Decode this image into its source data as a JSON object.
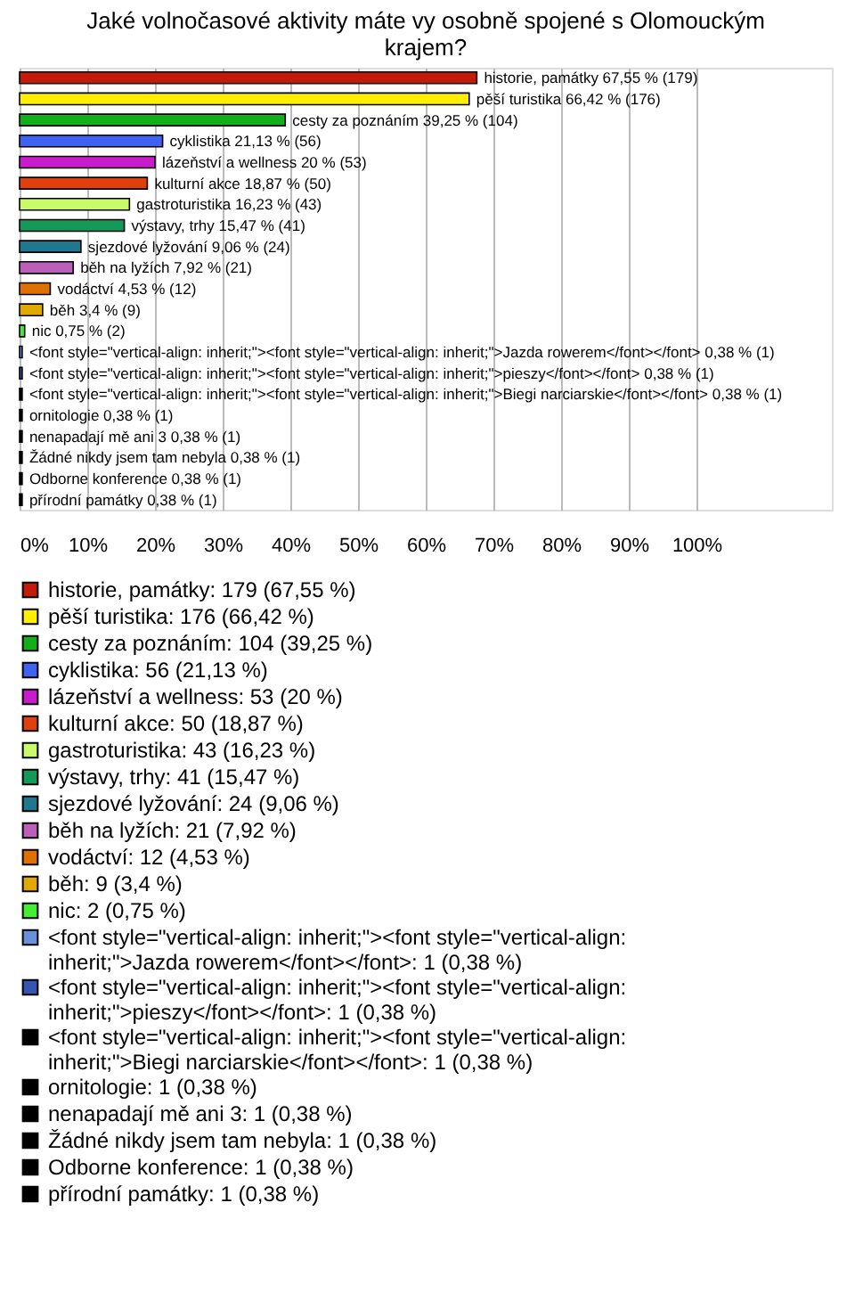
{
  "chart_data": {
    "type": "bar",
    "orientation": "horizontal",
    "stacked": true,
    "title": "Jaké volnočasové aktivity máte vy osobně spojené s Olomouckým krajem?",
    "categories": [
      "historie, památky",
      "pěší turistika",
      "cesty za poznáním",
      "cyklistika",
      "lázeňství a wellness",
      "kulturní akce",
      "gastroturistika",
      "výstavy, trhy",
      "sjezdové lyžování",
      "běh na lyžích",
      "vodáctví",
      "běh",
      "nic",
      "<font style=\"vertical-align: inherit;\"><font style=\"vertical-align: inherit;\">Jazda rowerem</font></font>",
      "<font style=\"vertical-align: inherit;\"><font style=\"vertical-align: inherit;\">pieszy</font></font>",
      "<font style=\"vertical-align: inherit;\"><font style=\"vertical-align: inherit;\">Biegi narciarskie</font></font>",
      "ornitologie",
      "nenapadají mě ani 3",
      "Žádné nikdy jsem tam nebyla",
      "Odborne konference",
      "přírodní památky"
    ],
    "series": [
      {
        "name": "historie, památky: 179 (67,55 %)",
        "color": "#c41a0a",
        "values": [
          67.55,
          null,
          null,
          null,
          null,
          null,
          null,
          null,
          null,
          null,
          null,
          null,
          null,
          null,
          null,
          null,
          null,
          null,
          null,
          null,
          null
        ]
      },
      {
        "name": "pěší turistika: 176 (66,42 %)",
        "color": "#ffee00",
        "values": [
          null,
          66.42,
          null,
          null,
          null,
          null,
          null,
          null,
          null,
          null,
          null,
          null,
          null,
          null,
          null,
          null,
          null,
          null,
          null,
          null,
          null
        ]
      },
      {
        "name": "cesty za poznáním: 104 (39,25 %)",
        "color": "#11b01a",
        "values": [
          null,
          null,
          39.25,
          null,
          null,
          null,
          null,
          null,
          null,
          null,
          null,
          null,
          null,
          null,
          null,
          null,
          null,
          null,
          null,
          null,
          null
        ]
      },
      {
        "name": "cyklistika: 56 (21,13 %)",
        "color": "#3f63f0",
        "values": [
          null,
          null,
          null,
          21.13,
          null,
          null,
          null,
          null,
          null,
          null,
          null,
          null,
          null,
          null,
          null,
          null,
          null,
          null,
          null,
          null,
          null
        ]
      },
      {
        "name": "lázeňství a wellness: 53 (20 %)",
        "color": "#c81ccc",
        "values": [
          null,
          null,
          null,
          null,
          20,
          null,
          null,
          null,
          null,
          null,
          null,
          null,
          null,
          null,
          null,
          null,
          null,
          null,
          null,
          null,
          null
        ]
      },
      {
        "name": "kulturní akce: 50 (18,87 %)",
        "color": "#e0400c",
        "values": [
          null,
          null,
          null,
          null,
          null,
          18.87,
          null,
          null,
          null,
          null,
          null,
          null,
          null,
          null,
          null,
          null,
          null,
          null,
          null,
          null,
          null
        ]
      },
      {
        "name": "gastroturistika: 43 (16,23 %)",
        "color": "#c8fa6a",
        "values": [
          null,
          null,
          null,
          null,
          null,
          null,
          16.23,
          null,
          null,
          null,
          null,
          null,
          null,
          null,
          null,
          null,
          null,
          null,
          null,
          null,
          null
        ]
      },
      {
        "name": "výstavy, trhy: 41 (15,47 %)",
        "color": "#139a5a",
        "values": [
          null,
          null,
          null,
          null,
          null,
          null,
          null,
          15.47,
          null,
          null,
          null,
          null,
          null,
          null,
          null,
          null,
          null,
          null,
          null,
          null,
          null
        ]
      },
      {
        "name": "sjezdové lyžování: 24 (9,06 %)",
        "color": "#1e7890",
        "values": [
          null,
          null,
          null,
          null,
          null,
          null,
          null,
          null,
          9.06,
          null,
          null,
          null,
          null,
          null,
          null,
          null,
          null,
          null,
          null,
          null,
          null
        ]
      },
      {
        "name": "běh na lyžích: 21 (7,92 %)",
        "color": "#bb5fbb",
        "values": [
          null,
          null,
          null,
          null,
          null,
          null,
          null,
          null,
          null,
          7.92,
          null,
          null,
          null,
          null,
          null,
          null,
          null,
          null,
          null,
          null,
          null
        ]
      },
      {
        "name": "vodáctví: 12 (4,53 %)",
        "color": "#e07000",
        "values": [
          null,
          null,
          null,
          null,
          null,
          null,
          null,
          null,
          null,
          null,
          4.53,
          null,
          null,
          null,
          null,
          null,
          null,
          null,
          null,
          null,
          null
        ]
      },
      {
        "name": "běh: 9 (3,4 %)",
        "color": "#e0a800",
        "values": [
          null,
          null,
          null,
          null,
          null,
          null,
          null,
          null,
          null,
          null,
          null,
          3.4,
          null,
          null,
          null,
          null,
          null,
          null,
          null,
          null,
          null
        ]
      },
      {
        "name": "nic: 2 (0,75 %)",
        "color": "#44ee33",
        "values": [
          null,
          null,
          null,
          null,
          null,
          null,
          null,
          null,
          null,
          null,
          null,
          null,
          0.75,
          null,
          null,
          null,
          null,
          null,
          null,
          null,
          null
        ]
      },
      {
        "name": "<font style=\"vertical-align: inherit;\"><font style=\"vertical-align: inherit;\">Jazda rowerem</font></font>: 1 (0,38 %)",
        "color": "#6a90dc",
        "values": [
          null,
          null,
          null,
          null,
          null,
          null,
          null,
          null,
          null,
          null,
          null,
          null,
          null,
          0.38,
          null,
          null,
          null,
          null,
          null,
          null,
          null
        ]
      },
      {
        "name": "<font style=\"vertical-align: inherit;\"><font style=\"vertical-align: inherit;\">pieszy</font></font>: 1 (0,38 %)",
        "color": "#3655b0",
        "values": [
          null,
          null,
          null,
          null,
          null,
          null,
          null,
          null,
          null,
          null,
          null,
          null,
          null,
          null,
          0.38,
          null,
          null,
          null,
          null,
          null,
          null
        ]
      },
      {
        "name": "<font style=\"vertical-align: inherit;\"><font style=\"vertical-align: inherit;\">Biegi narciarskie</font></font>: 1 (0,38 %)",
        "color": "#000000",
        "values": [
          null,
          null,
          null,
          null,
          null,
          null,
          null,
          null,
          null,
          null,
          null,
          null,
          null,
          null,
          null,
          0.38,
          null,
          null,
          null,
          null,
          null
        ]
      },
      {
        "name": "ornitologie: 1 (0,38 %)",
        "color": "#000000",
        "values": [
          null,
          null,
          null,
          null,
          null,
          null,
          null,
          null,
          null,
          null,
          null,
          null,
          null,
          null,
          null,
          null,
          0.38,
          null,
          null,
          null,
          null
        ]
      },
      {
        "name": "nenapadají mě ani 3: 1 (0,38 %)",
        "color": "#000000",
        "values": [
          null,
          null,
          null,
          null,
          null,
          null,
          null,
          null,
          null,
          null,
          null,
          null,
          null,
          null,
          null,
          null,
          null,
          0.38,
          null,
          null,
          null
        ]
      },
      {
        "name": "Žádné nikdy jsem tam nebyla: 1 (0,38 %)",
        "color": "#000000",
        "values": [
          null,
          null,
          null,
          null,
          null,
          null,
          null,
          null,
          null,
          null,
          null,
          null,
          null,
          null,
          null,
          null,
          null,
          null,
          0.38,
          null,
          null
        ]
      },
      {
        "name": "Odborne konference: 1 (0,38 %)",
        "color": "#000000",
        "values": [
          null,
          null,
          null,
          null,
          null,
          null,
          null,
          null,
          null,
          null,
          null,
          null,
          null,
          null,
          null,
          null,
          null,
          null,
          null,
          0.38,
          null
        ]
      },
      {
        "name": "přírodní památky: 1 (0,38 %)",
        "color": "#000000",
        "values": [
          null,
          null,
          null,
          null,
          null,
          null,
          null,
          null,
          null,
          null,
          null,
          null,
          null,
          null,
          null,
          null,
          null,
          null,
          null,
          null,
          0.38
        ]
      }
    ],
    "value_labels": [
      "67,55 % (179)",
      "66,42 % (176)",
      "39,25 % (104)",
      "21,13 % (56)",
      "20 % (53)",
      "18,87 % (50)",
      "16,23 % (43)",
      "15,47 % (41)",
      "9,06 % (24)",
      "7,92 % (21)",
      "4,53 % (12)",
      "3,4 % (9)",
      "0,75 % (2)",
      "0,38 % (1)",
      "0,38 % (1)",
      "0,38 % (1)",
      "0,38 % (1)",
      "0,38 % (1)",
      "0,38 % (1)",
      "0,38 % (1)",
      "0,38 % (1)"
    ],
    "xlim": [
      0,
      120
    ],
    "xticks": [
      {
        "value": 0,
        "label": "0%"
      },
      {
        "value": 10,
        "label": "10%"
      },
      {
        "value": 20,
        "label": "20%"
      },
      {
        "value": 30,
        "label": "30%"
      },
      {
        "value": 40,
        "label": "40%"
      },
      {
        "value": 50,
        "label": "50%"
      },
      {
        "value": 60,
        "label": "60%"
      },
      {
        "value": 70,
        "label": "70%"
      },
      {
        "value": 80,
        "label": "80%"
      },
      {
        "value": 90,
        "label": "90%"
      },
      {
        "value": 100,
        "label": "100%"
      }
    ],
    "grid": "x",
    "tick_labels": "x",
    "legend": "bottom"
  }
}
